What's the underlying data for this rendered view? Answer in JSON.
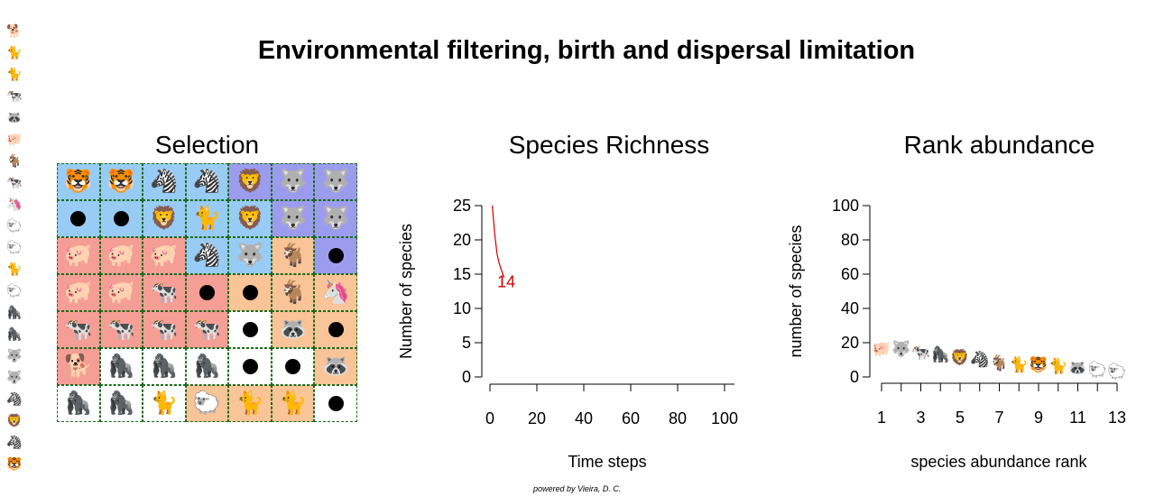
{
  "title": "Environmental filtering, birth and dispersal limitation",
  "credit": "powered by Vieira, D. C.",
  "colors": {
    "bg_lightblue": "#99ccf5",
    "bg_purple": "#9c9cef",
    "bg_salmon": "#f59e95",
    "bg_peach": "#f9c497",
    "bg_white": "#ffffff",
    "grid_border": "#1a6b1a",
    "curve": "#cc0000"
  },
  "legend_strip": [
    {
      "glyph": "🐕",
      "color": "#cc0000"
    },
    {
      "glyph": "🐈",
      "color": "#d81b0e"
    },
    {
      "glyph": "🐈",
      "color": "#e03a12"
    },
    {
      "glyph": "🐄",
      "color": "#e85416"
    },
    {
      "glyph": "🦝",
      "color": "#f06b1a"
    },
    {
      "glyph": "🐖",
      "color": "#f7821f"
    },
    {
      "glyph": "🐐",
      "color": "#fc9a23"
    },
    {
      "glyph": "🐄",
      "color": "#ffb328"
    },
    {
      "glyph": "🦄",
      "color": "#ffd22c"
    },
    {
      "glyph": "🐑",
      "color": "#f5ee50"
    },
    {
      "glyph": "🐑",
      "color": "#dff57a"
    },
    {
      "glyph": "🐈",
      "color": "#c3f595"
    },
    {
      "glyph": "🐑",
      "color": "#a8f2b5"
    },
    {
      "glyph": "🦍",
      "color": "#8aeede"
    },
    {
      "glyph": "🦍",
      "color": "#5ae1f2"
    },
    {
      "glyph": "🐺",
      "color": "#34c6f5"
    },
    {
      "glyph": "🐺",
      "color": "#23a8f2"
    },
    {
      "glyph": "🦓",
      "color": "#1687e0"
    },
    {
      "glyph": "🦁",
      "color": "#1067cd"
    },
    {
      "glyph": "🦓",
      "color": "#0c48b8"
    },
    {
      "glyph": "🐯",
      "color": "#1030a0"
    }
  ],
  "selection": {
    "title": "Selection",
    "cells": [
      [
        {
          "bg": "lightblue",
          "icon": "🐯",
          "color": "#1a3fa6"
        },
        {
          "bg": "lightblue",
          "icon": "🐯",
          "color": "#1a3fa6"
        },
        {
          "bg": "lightblue",
          "icon": "🦓",
          "color": "#1a3fa6"
        },
        {
          "bg": "lightblue",
          "icon": "🦓",
          "color": "#1a3fa6"
        },
        {
          "bg": "purple",
          "icon": "🦁",
          "color": "#1a3fa6"
        },
        {
          "bg": "purple",
          "icon": "🐺",
          "color": "#2fa0f0"
        },
        {
          "bg": "purple",
          "icon": "🐺",
          "color": "#2fa0f0"
        }
      ],
      [
        {
          "bg": "lightblue",
          "icon": "dot"
        },
        {
          "bg": "lightblue",
          "icon": "dot"
        },
        {
          "bg": "lightblue",
          "icon": "🦁",
          "color": "#1a3fa6"
        },
        {
          "bg": "lightblue",
          "icon": "🐈",
          "color": "#b5f0b5"
        },
        {
          "bg": "lightblue",
          "icon": "🦁",
          "color": "#1a4fc0"
        },
        {
          "bg": "purple",
          "icon": "🐺",
          "color": "#2fa0f0"
        },
        {
          "bg": "purple",
          "icon": "🐺",
          "color": "#2fa0f0"
        }
      ],
      [
        {
          "bg": "salmon",
          "icon": "🐖",
          "color": "#f58a1e"
        },
        {
          "bg": "salmon",
          "icon": "🐖",
          "color": "#f58a1e"
        },
        {
          "bg": "salmon",
          "icon": "🐖",
          "color": "#f58a1e"
        },
        {
          "bg": "lightblue",
          "icon": "🦓",
          "color": "#1a3fa6"
        },
        {
          "bg": "lightblue",
          "icon": "🐺",
          "color": "#2fa0f0"
        },
        {
          "bg": "peach",
          "icon": "🐐",
          "color": "#f7a21a"
        },
        {
          "bg": "purple",
          "icon": "dot"
        }
      ],
      [
        {
          "bg": "salmon",
          "icon": "🐖",
          "color": "#f58a1e"
        },
        {
          "bg": "salmon",
          "icon": "🐖",
          "color": "#f58a1e"
        },
        {
          "bg": "salmon",
          "icon": "🐄",
          "color": "#e04a14"
        },
        {
          "bg": "salmon",
          "icon": "dot"
        },
        {
          "bg": "peach",
          "icon": "dot"
        },
        {
          "bg": "peach",
          "icon": "🐐",
          "color": "#f7a21a"
        },
        {
          "bg": "peach",
          "icon": "🦄",
          "color": "#f5e040"
        }
      ],
      [
        {
          "bg": "salmon",
          "icon": "🐄",
          "color": "#d42a10"
        },
        {
          "bg": "salmon",
          "icon": "🐄",
          "color": "#d42a10"
        },
        {
          "bg": "salmon",
          "icon": "🐄",
          "color": "#d42a10"
        },
        {
          "bg": "salmon",
          "icon": "🐄",
          "color": "#e04a14"
        },
        {
          "bg": "white",
          "icon": "dot"
        },
        {
          "bg": "peach",
          "icon": "🦝",
          "color": "#f06b1a"
        },
        {
          "bg": "peach",
          "icon": "dot"
        }
      ],
      [
        {
          "bg": "salmon",
          "icon": "🐕",
          "color": "#b00000"
        },
        {
          "bg": "white",
          "icon": "🦍",
          "color": "#5ae1f2"
        },
        {
          "bg": "white",
          "icon": "🦍",
          "color": "#5ae1f2"
        },
        {
          "bg": "white",
          "icon": "🦍",
          "color": "#5ae1f2"
        },
        {
          "bg": "white",
          "icon": "dot"
        },
        {
          "bg": "white",
          "icon": "dot"
        },
        {
          "bg": "peach",
          "icon": "🦝",
          "color": "#f06b1a"
        }
      ],
      [
        {
          "bg": "white",
          "icon": "🦍",
          "color": "#5ae1f2"
        },
        {
          "bg": "white",
          "icon": "🦍",
          "color": "#5ae1f2"
        },
        {
          "bg": "white",
          "icon": "🐈",
          "color": "#b5f0b5"
        },
        {
          "bg": "peach",
          "icon": "🐑",
          "color": "#d8f078"
        },
        {
          "bg": "peach",
          "icon": "🐈",
          "color": "#d42a10"
        },
        {
          "bg": "peach",
          "icon": "🐈",
          "color": "#e03a12"
        },
        {
          "bg": "white",
          "icon": "dot"
        }
      ]
    ]
  },
  "chart_data": [
    {
      "type": "line",
      "title": "Species Richness",
      "xlabel": "Time steps",
      "ylabel": "Number of species",
      "xlim": [
        0,
        100
      ],
      "ylim": [
        0,
        25
      ],
      "xticks": [
        0,
        20,
        40,
        60,
        80,
        100
      ],
      "yticks": [
        0,
        5,
        10,
        15,
        20,
        25
      ],
      "series": [
        {
          "x": [
            1,
            1.5,
            2,
            2.5,
            3,
            3.5,
            4,
            4.5,
            5,
            5.5,
            6
          ],
          "y": [
            25,
            23,
            21,
            19.5,
            18,
            17.2,
            16.5,
            16,
            15.5,
            15,
            14.5
          ]
        }
      ],
      "annotation": {
        "text": "14",
        "x": 7,
        "y": 14
      }
    },
    {
      "type": "scatter",
      "title": "Rank abundance",
      "xlabel": "species abundance rank",
      "ylabel": "number of species",
      "xlim": [
        1,
        13
      ],
      "ylim": [
        0,
        100
      ],
      "xticks": [
        1,
        3,
        5,
        7,
        9,
        11,
        13
      ],
      "yticks": [
        0,
        20,
        40,
        60,
        80,
        100
      ],
      "points": [
        {
          "rank": 1,
          "value": 17,
          "glyph": "🐖",
          "color": "#f7a21a"
        },
        {
          "rank": 2,
          "value": 17,
          "glyph": "🐺",
          "color": "#34c6f5"
        },
        {
          "rank": 3,
          "value": 15,
          "glyph": "🐄",
          "color": "#e85416"
        },
        {
          "rank": 4,
          "value": 14,
          "glyph": "🦍",
          "color": "#34c6f5"
        },
        {
          "rank": 5,
          "value": 12,
          "glyph": "🦁",
          "color": "#1a3fa6"
        },
        {
          "rank": 6,
          "value": 11,
          "glyph": "🦓",
          "color": "#1a3fa6"
        },
        {
          "rank": 7,
          "value": 9,
          "glyph": "🐐",
          "color": "#ffb328"
        },
        {
          "rank": 8,
          "value": 8,
          "glyph": "🐈",
          "color": "#d42a10"
        },
        {
          "rank": 9,
          "value": 8,
          "glyph": "🐯",
          "color": "#1a3fa6"
        },
        {
          "rank": 10,
          "value": 7,
          "glyph": "🐈",
          "color": "#a8f2b5"
        },
        {
          "rank": 11,
          "value": 6,
          "glyph": "🦝",
          "color": "#f06b1a"
        },
        {
          "rank": 12,
          "value": 5,
          "glyph": "🐑",
          "color": "#a8f2b5"
        },
        {
          "rank": 13,
          "value": 4,
          "glyph": "🐑",
          "color": "#f5ee50"
        }
      ]
    }
  ]
}
